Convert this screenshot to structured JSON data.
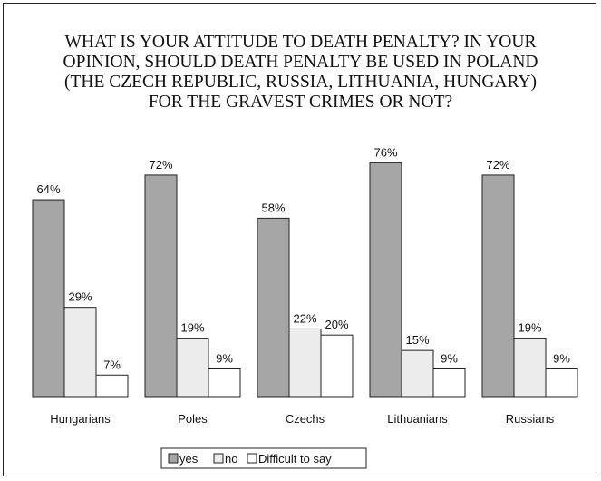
{
  "chart_data": {
    "type": "bar",
    "title_lines": [
      "WHAT IS YOUR ATTITUDE TO DEATH PENALTY?  IN YOUR",
      "OPINION, SHOULD DEATH PENALTY BE USED IN POLAND",
      "(THE CZECH REPUBLIC, RUSSIA, LITHUANIA, HUNGARY)",
      "FOR THE GRAVEST CRIMES OR NOT?"
    ],
    "categories": [
      "Hungarians",
      "Poles",
      "Czechs",
      "Lithuanians",
      "Russians"
    ],
    "series": [
      {
        "name": "yes",
        "values": [
          64,
          72,
          58,
          76,
          72
        ],
        "color": "#a6a6a6"
      },
      {
        "name": "no",
        "values": [
          29,
          19,
          22,
          15,
          19
        ],
        "color": "#ececec"
      },
      {
        "name": "Difficult to say",
        "values": [
          7,
          9,
          20,
          9,
          9
        ],
        "color": "#ffffff"
      }
    ],
    "value_suffix": "%",
    "ylim": [
      0,
      100
    ],
    "grid": false,
    "legend_position": "bottom-center",
    "xlabel": "",
    "ylabel": ""
  }
}
